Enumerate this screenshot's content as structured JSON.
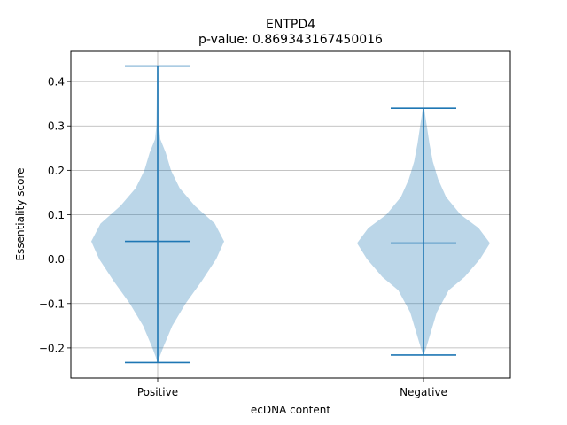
{
  "chart_data": {
    "type": "violin",
    "title": "ENTPD4",
    "subtitle": "p-value: 0.869343167450016",
    "xlabel": "ecDNA content",
    "ylabel": "Essentiality score",
    "ylim": [
      -0.268,
      0.468
    ],
    "grid": true,
    "y_ticks": [
      {
        "value": -0.2,
        "label": "−0.2"
      },
      {
        "value": -0.1,
        "label": "−0.1"
      },
      {
        "value": 0.0,
        "label": "0.0"
      },
      {
        "value": 0.1,
        "label": "0.1"
      },
      {
        "value": 0.2,
        "label": "0.2"
      },
      {
        "value": 0.3,
        "label": "0.3"
      },
      {
        "value": 0.4,
        "label": "0.4"
      }
    ],
    "categories": [
      "Positive",
      "Negative"
    ],
    "series": [
      {
        "category": "Positive",
        "min": -0.233,
        "max": 0.435,
        "median": 0.04,
        "density": [
          [
            -0.233,
            0.005
          ],
          [
            -0.22,
            0.03
          ],
          [
            -0.2,
            0.08
          ],
          [
            -0.15,
            0.22
          ],
          [
            -0.1,
            0.42
          ],
          [
            -0.05,
            0.66
          ],
          [
            0.0,
            0.88
          ],
          [
            0.04,
            1.0
          ],
          [
            0.08,
            0.86
          ],
          [
            0.12,
            0.56
          ],
          [
            0.16,
            0.33
          ],
          [
            0.2,
            0.2
          ],
          [
            0.24,
            0.12
          ],
          [
            0.27,
            0.04
          ],
          [
            0.3,
            0.02
          ],
          [
            0.35,
            0.015
          ],
          [
            0.4,
            0.012
          ],
          [
            0.435,
            0.008
          ]
        ]
      },
      {
        "category": "Negative",
        "min": -0.216,
        "max": 0.34,
        "median": 0.036,
        "density": [
          [
            -0.216,
            0.005
          ],
          [
            -0.2,
            0.04
          ],
          [
            -0.17,
            0.1
          ],
          [
            -0.12,
            0.2
          ],
          [
            -0.07,
            0.38
          ],
          [
            -0.04,
            0.62
          ],
          [
            0.0,
            0.85
          ],
          [
            0.036,
            1.0
          ],
          [
            0.07,
            0.83
          ],
          [
            0.1,
            0.56
          ],
          [
            0.14,
            0.34
          ],
          [
            0.18,
            0.22
          ],
          [
            0.22,
            0.14
          ],
          [
            0.26,
            0.09
          ],
          [
            0.3,
            0.05
          ],
          [
            0.34,
            0.01
          ]
        ]
      }
    ],
    "colors": {
      "body": "#1f77b4",
      "line": "#1f77b4",
      "grid": "#b0b0b0"
    }
  }
}
